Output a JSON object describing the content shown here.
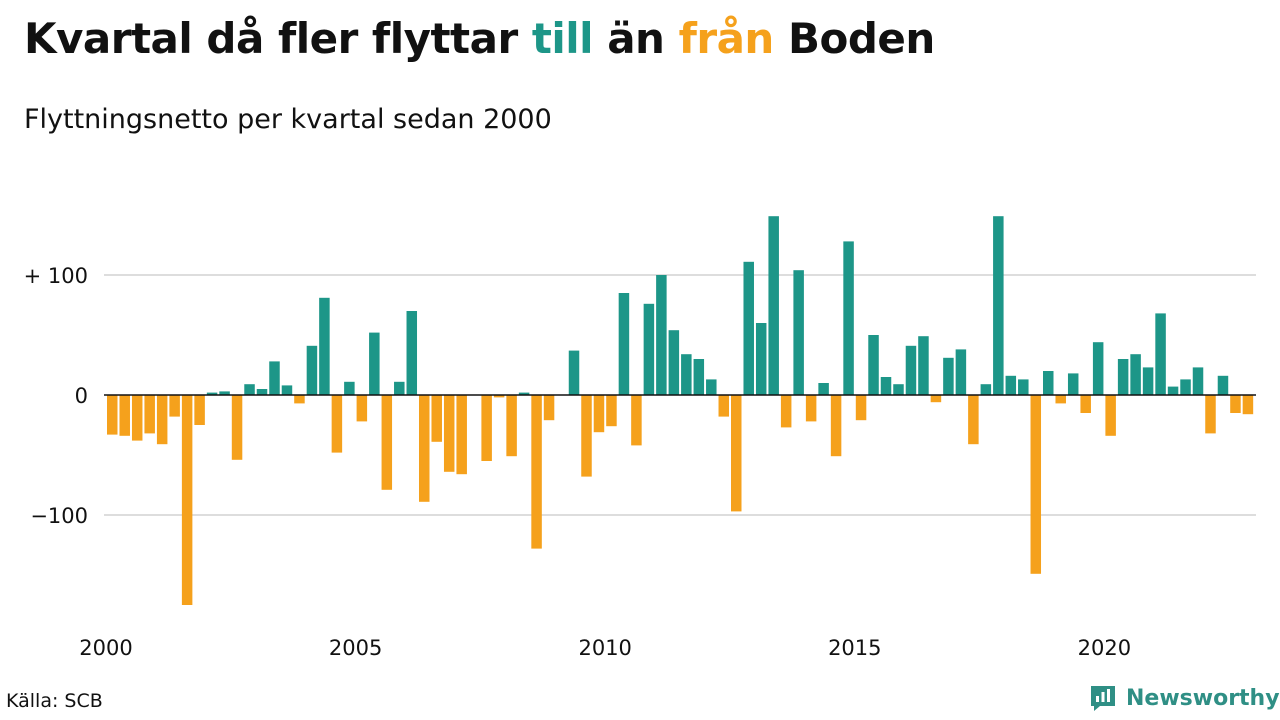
{
  "title": {
    "part1": "Kvartal då fler flyttar ",
    "till": "till",
    "part2": " än ",
    "fran": "från",
    "part3": " Boden"
  },
  "subtitle": "Flyttningsnetto per kvartal sedan 2000",
  "source": "Källa: SCB",
  "logo": {
    "text": "Newsworthy"
  },
  "colors": {
    "positive": "#1d9688",
    "negative": "#f5a11c",
    "grid": "#dddddd",
    "zero_line": "#111111"
  },
  "chart_data": {
    "type": "bar",
    "x_start": "2000 Q1",
    "ylim": [
      -180,
      150
    ],
    "y_ticks": [
      100,
      0,
      -100
    ],
    "y_tick_labels": [
      "+ 100",
      "0",
      "−100"
    ],
    "x_tick_labels": [
      "2000",
      "2005",
      "2010",
      "2015",
      "2020"
    ],
    "grid": true,
    "values": [
      -33,
      -34,
      -38,
      -32,
      -41,
      -18,
      -175,
      -25,
      2,
      3,
      -54,
      9,
      5,
      28,
      8,
      -7,
      41,
      81,
      -48,
      11,
      -22,
      52,
      -79,
      11,
      70,
      -89,
      -39,
      -64,
      -66,
      0,
      -55,
      -2,
      -51,
      2,
      -128,
      -21,
      0,
      37,
      -68,
      -31,
      -26,
      85,
      -42,
      76,
      100,
      54,
      34,
      30,
      13,
      -18,
      -97,
      111,
      60,
      149,
      -27,
      104,
      -22,
      10,
      -51,
      128,
      -21,
      50,
      15,
      9,
      41,
      49,
      -6,
      31,
      38,
      -41,
      9,
      149,
      16,
      13,
      -149,
      20,
      -7,
      18,
      -15,
      44,
      -34,
      30,
      34,
      23,
      68,
      7,
      13,
      23,
      -32,
      16,
      -15,
      -16
    ]
  }
}
